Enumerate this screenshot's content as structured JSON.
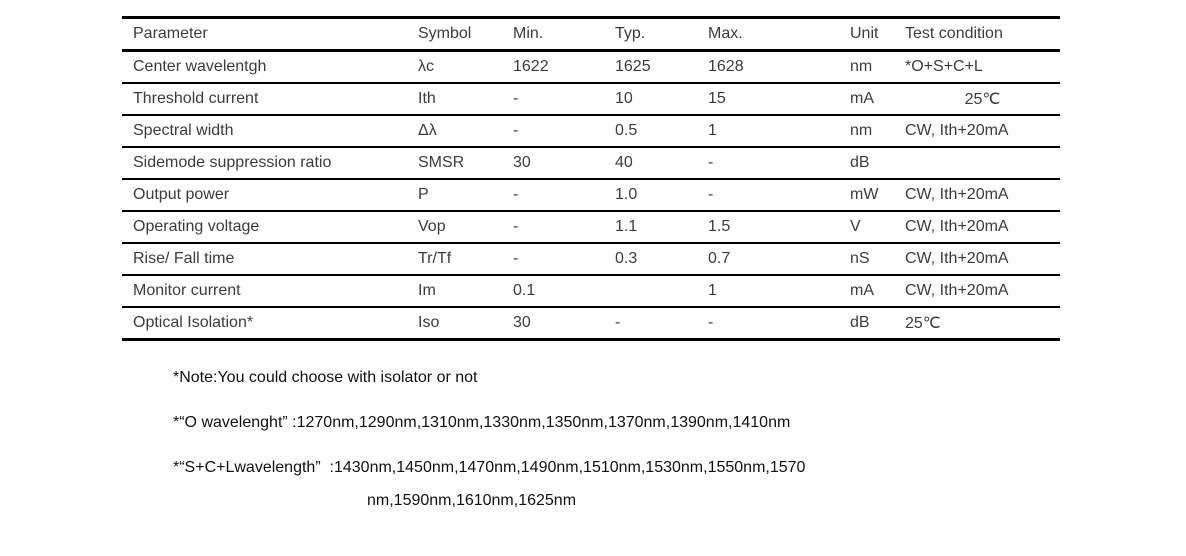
{
  "table": {
    "columns": [
      {
        "key": "param",
        "label": "Parameter"
      },
      {
        "key": "symbol",
        "label": "Symbol"
      },
      {
        "key": "min",
        "label": "Min."
      },
      {
        "key": "typ",
        "label": "Typ."
      },
      {
        "key": "max",
        "label": "Max."
      },
      {
        "key": "unit",
        "label": "Unit"
      },
      {
        "key": "test",
        "label": "Test condition"
      }
    ],
    "rows": [
      {
        "param": "Center wavelentgh",
        "symbol": "λc",
        "min": "1622",
        "typ": "1625",
        "max": "1628",
        "unit": "nm",
        "test": "*O+S+C+L"
      },
      {
        "param": "Threshold current",
        "symbol": "Ith",
        "min": "-",
        "typ": "10",
        "max": "15",
        "unit": "mA",
        "test": "25℃",
        "test_align": "center"
      },
      {
        "param": "Spectral width",
        "symbol": "Δλ",
        "min": "-",
        "typ": "0.5",
        "max": "1",
        "unit": "nm",
        "test": "CW, Ith+20mA"
      },
      {
        "param": "Sidemode suppression ratio",
        "symbol": "SMSR",
        "min": "30",
        "typ": "40",
        "max": "-",
        "unit": "dB",
        "test": ""
      },
      {
        "param": "Output power",
        "symbol": "P",
        "min": "-",
        "typ": "1.0",
        "max": "-",
        "unit": "mW",
        "test": "CW, Ith+20mA"
      },
      {
        "param": "Operating voltage",
        "symbol": "Vop",
        "min": "-",
        "typ": "1.1",
        "max": "1.5",
        "unit": "V",
        "test": "CW, Ith+20mA"
      },
      {
        "param": "Rise/ Fall time",
        "symbol": "Tr/Tf",
        "min": "-",
        "typ": "0.3",
        "max": "0.7",
        "unit": "nS",
        "test": "CW, Ith+20mA"
      },
      {
        "param": "Monitor current",
        "symbol": "Im",
        "min": "0.1",
        "typ": "",
        "max": "1",
        "unit": "mA",
        "test": "CW, Ith+20mA"
      },
      {
        "param": "Optical Isolation*",
        "symbol": "Iso",
        "min": "30",
        "typ": "-",
        "max": "-",
        "unit": "dB",
        "test": "25℃"
      }
    ]
  },
  "notes": [
    {
      "text": "*Note:You could choose with isolator or not"
    },
    {
      "text": "*“O wavelenght” :1270nm,1290nm,1310nm,1330nm,1350nm,1370nm,1390nm,1410nm"
    },
    {
      "line1": "*“S+C+Lwavelength”  :1430nm,1450nm,1470nm,1490nm,1510nm,1530nm,1550nm,1570",
      "line2": "nm,1590nm,1610nm,1625nm"
    }
  ],
  "colors": {
    "table_text": "#3c3c3c",
    "note_text": "#111111",
    "rule": "#000000",
    "background": "#ffffff"
  }
}
